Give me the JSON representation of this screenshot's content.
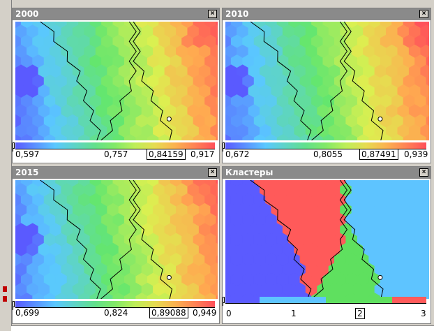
{
  "panels": [
    {
      "key": "p2000",
      "title": "2000",
      "min": "0,597",
      "mid": "0,757",
      "value": "0,84159",
      "max": "0,917",
      "valueFrac": 0.76,
      "scale": "continuous"
    },
    {
      "key": "p2010",
      "title": "2010",
      "min": "0,672",
      "mid": "0,8055",
      "value": "0,87491",
      "max": "0,939",
      "valueFrac": 0.77,
      "scale": "continuous"
    },
    {
      "key": "p2015",
      "title": "2015",
      "min": "0,699",
      "mid": "0,824",
      "value": "0,89088",
      "max": "0,949",
      "valueFrac": 0.77,
      "scale": "continuous"
    },
    {
      "key": "clusters",
      "title": "Кластеры",
      "min": "0",
      "mid": "1",
      "value": "2",
      "max": "3",
      "valueFrac": 0.667,
      "scale": "discrete"
    }
  ],
  "close_icon": "close-icon",
  "colors": {
    "blue": "#5b5bff",
    "lightblue": "#5ec4ff",
    "green": "#5fe05f",
    "red": "#ff5a5a",
    "titlebar": "#8a8a8a"
  }
}
